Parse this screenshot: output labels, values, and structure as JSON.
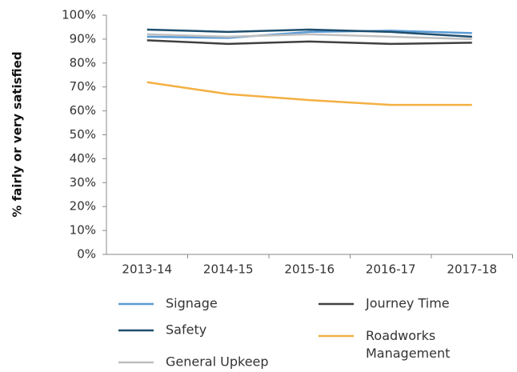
{
  "chart_data": {
    "type": "line",
    "y_label": "% fairly or very satisfied",
    "categories": [
      "2013-14",
      "2014-15",
      "2015-16",
      "2016-17",
      "2017-18"
    ],
    "series": [
      {
        "name": "Signage",
        "color": "#5b9bd5",
        "values": [
          91,
          90.5,
          93,
          93.5,
          92.5
        ]
      },
      {
        "name": "Safety",
        "color": "#1f4e6e",
        "values": [
          94,
          93,
          94,
          93,
          91
        ]
      },
      {
        "name": "General Upkeep",
        "color": "#bfbfbf",
        "values": [
          92,
          91,
          92,
          91,
          90
        ]
      },
      {
        "name": "Journey Time",
        "color": "#404040",
        "values": [
          89.5,
          88,
          89,
          88,
          88.5
        ]
      },
      {
        "name": "Roadworks Management",
        "color": "#f4b042",
        "values": [
          72,
          67,
          64.5,
          62.5,
          62.5
        ]
      }
    ],
    "ylim": [
      0,
      100
    ],
    "yticks": [
      {
        "value": 0,
        "label": "0%"
      },
      {
        "value": 10,
        "label": "10%"
      },
      {
        "value": 20,
        "label": "20%"
      },
      {
        "value": 30,
        "label": "30%"
      },
      {
        "value": 40,
        "label": "40%"
      },
      {
        "value": 50,
        "label": "50%"
      },
      {
        "value": 60,
        "label": "60%"
      },
      {
        "value": 70,
        "label": "70%"
      },
      {
        "value": 80,
        "label": "80%"
      },
      {
        "value": 90,
        "label": "90%"
      },
      {
        "value": 100,
        "label": "100%"
      }
    ],
    "legend": "bottom"
  }
}
